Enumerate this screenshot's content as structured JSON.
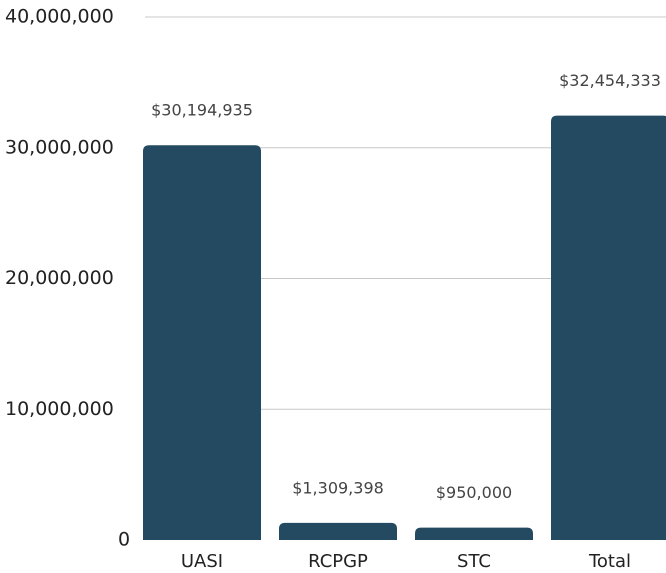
{
  "chart_data": {
    "type": "bar",
    "categories": [
      "UASI",
      "RCPGP",
      "STC",
      "Total"
    ],
    "values": [
      30194935,
      1309398,
      950000,
      32454333
    ],
    "value_labels": [
      "$30,194,935",
      "$1,309,398",
      "$950,000",
      "$32,454,333"
    ],
    "color": "#234a60",
    "ylim": [
      0,
      40000000
    ],
    "yticks": [
      0,
      {
        "value": 10000000,
        "label": "10,000,000"
      },
      {
        "value": 20000000,
        "label": "20,000,000"
      },
      {
        "value": 30000000,
        "label": "30,000,000"
      },
      {
        "value": 40000000,
        "label": "40,000,000"
      }
    ],
    "grid": true
  }
}
